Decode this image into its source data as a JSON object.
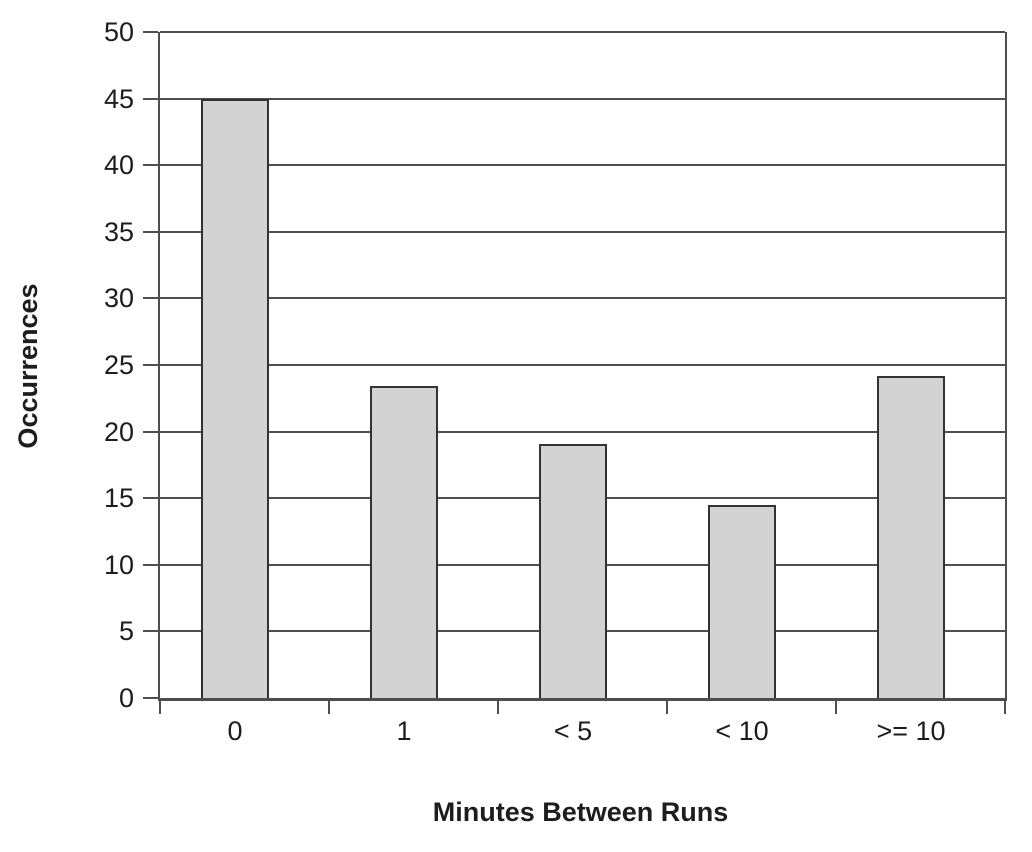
{
  "chart_data": {
    "type": "bar",
    "title": "",
    "xlabel": "Minutes Between Runs",
    "ylabel": "Occurrences",
    "categories": [
      "0",
      "1",
      "< 5",
      "< 10",
      ">= 10"
    ],
    "values": [
      45,
      23.4,
      19.1,
      14.5,
      24.2
    ],
    "ylim": [
      0,
      50
    ],
    "ytick_step": 5,
    "ytick_labels": [
      "0",
      "5",
      "10",
      "15",
      "20",
      "25",
      "30",
      "35",
      "40",
      "45",
      "50"
    ],
    "grid": "horizontal",
    "legend": "none",
    "colors": {
      "bar_fill": "#d3d3d3",
      "bar_border": "#333333",
      "axis": "#4d4d4d",
      "gridline": "#4f4f4f",
      "text": "#1d1d1d",
      "background": "#ffffff"
    }
  }
}
